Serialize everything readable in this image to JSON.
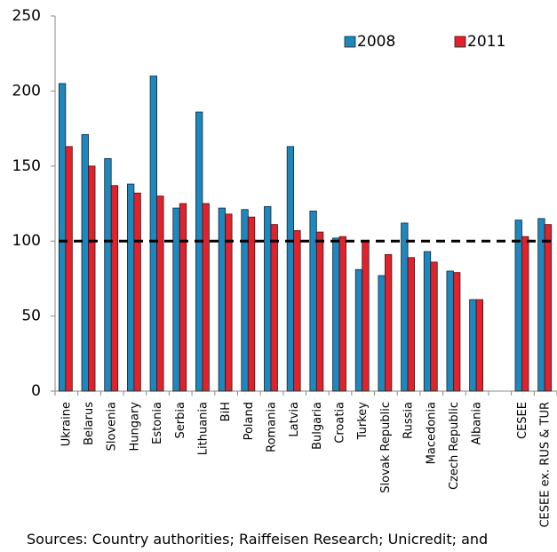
{
  "chart_data": {
    "type": "bar",
    "categories": [
      "Ukraine",
      "Belarus",
      "Slovenia",
      "Hungary",
      "Estonia",
      "Serbia",
      "Lithuania",
      "BiH",
      "Poland",
      "Romania",
      "Latvia",
      "Bulgaria",
      "Croatia",
      "Turkey",
      "Slovak Republic",
      "Russia",
      "Macedonia",
      "Czech Republic",
      "Albania",
      null,
      "CESEE",
      "CESEE ex. RUS & TUR"
    ],
    "series": [
      {
        "name": "2008",
        "color": "#1d87bf",
        "values": [
          205,
          171,
          155,
          138,
          210,
          122,
          186,
          122,
          121,
          123,
          163,
          120,
          102,
          81,
          77,
          112,
          93,
          80,
          61,
          null,
          114,
          115
        ]
      },
      {
        "name": "2011",
        "color": "#e3212b",
        "values": [
          163,
          150,
          137,
          132,
          130,
          125,
          125,
          118,
          116,
          111,
          107,
          106,
          103,
          100,
          91,
          89,
          86,
          79,
          61,
          null,
          103,
          111
        ]
      }
    ],
    "ylim": [
      0,
      250
    ],
    "yticks": [
      0,
      50,
      100,
      150,
      200,
      250
    ],
    "reference_line": 100,
    "legend": "top-right",
    "source": "Sources: Country authorities; Raiffeisen Research; Unicredit; and"
  }
}
